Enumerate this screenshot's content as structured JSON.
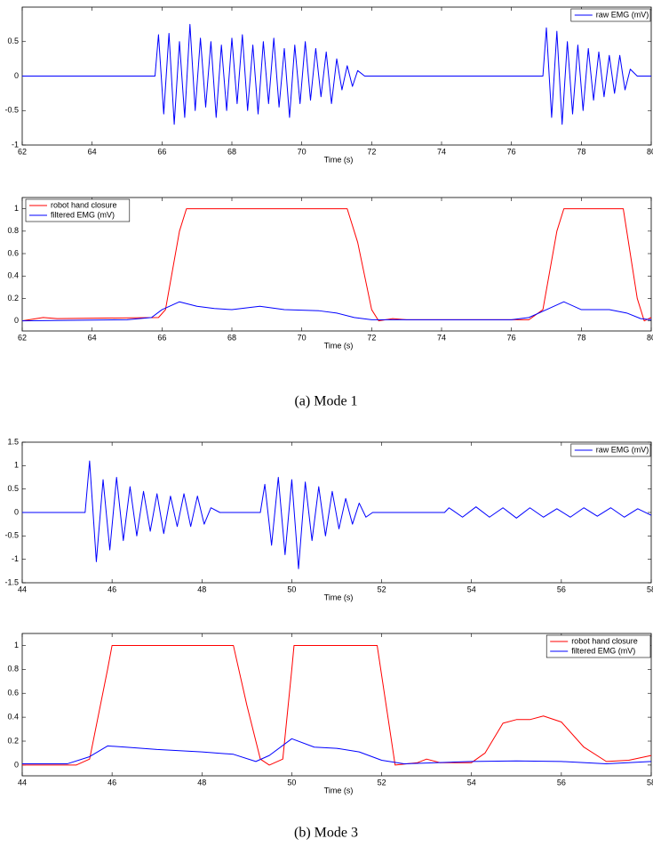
{
  "chart_data": [
    {
      "type": "line",
      "xlabel": "Time (s)",
      "xlim": [
        62,
        80
      ],
      "xticks": [
        62,
        64,
        66,
        68,
        70,
        72,
        74,
        76,
        78,
        80
      ],
      "ylim": [
        -1,
        1
      ],
      "yticks": [
        -1,
        -0.5,
        0,
        0.5
      ],
      "legend": "upper right",
      "series": [
        {
          "name": "raw EMG (mV)",
          "color": "#0000ff",
          "x": [
            62,
            65.8,
            65.9,
            66.05,
            66.2,
            66.35,
            66.5,
            66.65,
            66.8,
            66.95,
            67.1,
            67.25,
            67.4,
            67.55,
            67.7,
            67.85,
            68,
            68.15,
            68.3,
            68.45,
            68.6,
            68.75,
            68.9,
            69.05,
            69.2,
            69.35,
            69.5,
            69.65,
            69.8,
            69.95,
            70.1,
            70.25,
            70.4,
            70.55,
            70.7,
            70.85,
            71,
            71.15,
            71.3,
            71.45,
            71.6,
            71.8,
            76.9,
            77,
            77.15,
            77.3,
            77.45,
            77.6,
            77.75,
            77.9,
            78.05,
            78.2,
            78.35,
            78.5,
            78.65,
            78.8,
            78.95,
            79.1,
            79.25,
            79.4,
            79.6,
            80
          ],
          "values": [
            0,
            0,
            0.6,
            -0.55,
            0.62,
            -0.7,
            0.5,
            -0.6,
            0.75,
            -0.5,
            0.55,
            -0.45,
            0.5,
            -0.6,
            0.45,
            -0.5,
            0.55,
            -0.4,
            0.6,
            -0.5,
            0.45,
            -0.55,
            0.5,
            -0.4,
            0.55,
            -0.45,
            0.4,
            -0.6,
            0.45,
            -0.4,
            0.5,
            -0.35,
            0.4,
            -0.3,
            0.35,
            -0.4,
            0.25,
            -0.2,
            0.15,
            -0.15,
            0.08,
            0,
            0,
            0.7,
            -0.6,
            0.65,
            -0.7,
            0.5,
            -0.55,
            0.45,
            -0.5,
            0.4,
            -0.35,
            0.35,
            -0.3,
            0.3,
            -0.25,
            0.3,
            -0.2,
            0.1,
            0,
            0
          ]
        }
      ]
    },
    {
      "type": "line",
      "xlabel": "Time (s)",
      "xlim": [
        62,
        80
      ],
      "xticks": [
        62,
        64,
        66,
        68,
        70,
        72,
        74,
        76,
        78,
        80
      ],
      "ylim": [
        -0.09,
        1.1
      ],
      "yticks": [
        0,
        0.2,
        0.4,
        0.6,
        0.8,
        1
      ],
      "legend": "upper left",
      "series": [
        {
          "name": "robot hand closure",
          "color": "#ff0000",
          "x": [
            62,
            62.6,
            63,
            65.9,
            66.1,
            66.5,
            66.7,
            71.3,
            71.6,
            72,
            72.2,
            72.6,
            73,
            76.5,
            76.9,
            77.3,
            77.5,
            79.2,
            79.6,
            79.8,
            80
          ],
          "values": [
            0,
            0.03,
            0.02,
            0.03,
            0.1,
            0.8,
            1,
            1,
            0.7,
            0.1,
            0,
            0.02,
            0.01,
            0.01,
            0.1,
            0.8,
            1,
            1,
            0.2,
            0,
            0.03
          ]
        },
        {
          "name": "filtered EMG (mV)",
          "color": "#0000ff",
          "x": [
            62,
            65,
            65.7,
            66,
            66.5,
            67,
            67.5,
            68,
            68.8,
            69.5,
            70.5,
            71,
            71.5,
            72,
            76,
            76.5,
            77,
            77.5,
            78,
            78.8,
            79.3,
            79.7,
            80
          ],
          "values": [
            0,
            0.01,
            0.03,
            0.1,
            0.17,
            0.13,
            0.11,
            0.1,
            0.13,
            0.1,
            0.09,
            0.07,
            0.03,
            0.01,
            0.01,
            0.03,
            0.1,
            0.17,
            0.1,
            0.1,
            0.07,
            0.02,
            0.01
          ]
        }
      ]
    },
    {
      "type": "line",
      "xlabel": "Time (s)",
      "xlim": [
        44,
        58
      ],
      "xticks": [
        44,
        46,
        48,
        50,
        52,
        54,
        56,
        58
      ],
      "ylim": [
        -1.5,
        1.5
      ],
      "yticks": [
        -1.5,
        -1,
        -0.5,
        0,
        0.5,
        1,
        1.5
      ],
      "legend": "upper right",
      "series": [
        {
          "name": "raw EMG (mV)",
          "color": "#0000ff",
          "x": [
            44,
            45.4,
            45.5,
            45.65,
            45.8,
            45.95,
            46.1,
            46.25,
            46.4,
            46.55,
            46.7,
            46.85,
            47,
            47.15,
            47.3,
            47.45,
            47.6,
            47.75,
            47.9,
            48.05,
            48.2,
            48.4,
            49.3,
            49.4,
            49.55,
            49.7,
            49.85,
            50,
            50.15,
            50.3,
            50.45,
            50.6,
            50.75,
            50.9,
            51.05,
            51.2,
            51.35,
            51.5,
            51.65,
            51.8,
            53.4,
            53.5,
            53.8,
            54.1,
            54.4,
            54.7,
            55,
            55.3,
            55.6,
            55.9,
            56.2,
            56.5,
            56.8,
            57.1,
            57.4,
            57.7,
            58
          ],
          "values": [
            0,
            0,
            1.1,
            -1.05,
            0.7,
            -0.8,
            0.75,
            -0.6,
            0.55,
            -0.5,
            0.45,
            -0.4,
            0.4,
            -0.45,
            0.35,
            -0.3,
            0.4,
            -0.3,
            0.35,
            -0.25,
            0.1,
            0,
            0,
            0.6,
            -0.7,
            0.75,
            -0.9,
            0.7,
            -1.2,
            0.65,
            -0.6,
            0.55,
            -0.5,
            0.45,
            -0.35,
            0.3,
            -0.25,
            0.2,
            -0.1,
            0,
            0,
            0.1,
            -0.1,
            0.12,
            -0.1,
            0.1,
            -0.12,
            0.1,
            -0.1,
            0.08,
            -0.1,
            0.1,
            -0.08,
            0.1,
            -0.1,
            0.08,
            -0.06
          ]
        }
      ]
    },
    {
      "type": "line",
      "xlabel": "Time (s)",
      "xlim": [
        44,
        58
      ],
      "xticks": [
        44,
        46,
        48,
        50,
        52,
        54,
        56,
        58
      ],
      "ylim": [
        -0.09,
        1.1
      ],
      "yticks": [
        0,
        0.2,
        0.4,
        0.6,
        0.8,
        1
      ],
      "legend": "upper right",
      "series": [
        {
          "name": "robot hand closure",
          "color": "#ff0000",
          "x": [
            44,
            45.2,
            45.5,
            45.9,
            46,
            48.7,
            49,
            49.3,
            49.5,
            49.8,
            50,
            50.05,
            51.9,
            52.1,
            52.3,
            52.8,
            53,
            53.3,
            54,
            54.3,
            54.7,
            55,
            55.3,
            55.6,
            56,
            56.5,
            57,
            57.5,
            58
          ],
          "values": [
            0,
            0,
            0.05,
            0.8,
            1,
            1,
            0.5,
            0.05,
            0,
            0.05,
            0.8,
            1,
            1,
            0.5,
            0,
            0.02,
            0.05,
            0.02,
            0.02,
            0.1,
            0.35,
            0.38,
            0.38,
            0.41,
            0.36,
            0.15,
            0.03,
            0.04,
            0.08
          ]
        },
        {
          "name": "filtered EMG (mV)",
          "color": "#0000ff",
          "x": [
            44,
            45,
            45.5,
            45.9,
            46.3,
            47,
            48,
            48.7,
            49.2,
            49.5,
            50,
            50.5,
            51,
            51.5,
            52,
            52.5,
            54,
            55,
            56,
            57,
            58
          ],
          "values": [
            0.01,
            0.01,
            0.07,
            0.16,
            0.15,
            0.13,
            0.11,
            0.09,
            0.03,
            0.08,
            0.22,
            0.15,
            0.14,
            0.11,
            0.04,
            0.01,
            0.03,
            0.035,
            0.03,
            0.01,
            0.03
          ]
        }
      ]
    }
  ],
  "captions": [
    "(a) Mode 1",
    "(b) Mode 3"
  ]
}
